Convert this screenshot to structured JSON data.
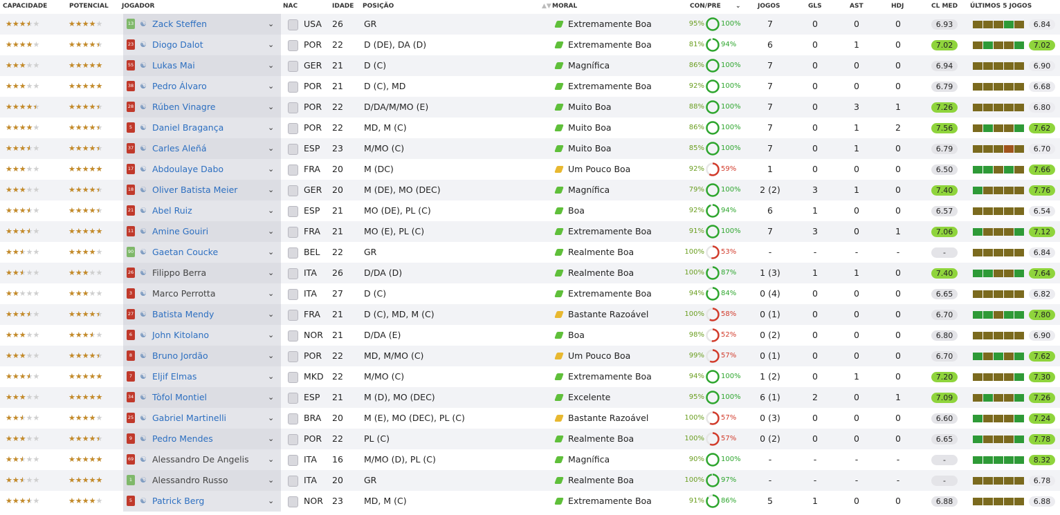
{
  "table": {
    "columns": [
      "CAPACIDADE",
      "POTENCIAL",
      "JOGADOR",
      "NAC",
      "IDADE",
      "POSIÇÃO",
      "MORAL",
      "CON/PRE",
      "JOGOS",
      "GLS",
      "AST",
      "HDJ",
      "CL MED",
      "ÚLTIMOS 5 JOGOS"
    ],
    "rows": [
      {
        "cap": 3.5,
        "pot": 4,
        "shirt": "13",
        "name": "Zack Steffen",
        "nat": "USA",
        "age": "26",
        "pos": "GR",
        "moral": "Extremamente Boa",
        "con": "95%",
        "pre": "100%",
        "jogos": "7",
        "gls": "0",
        "ast": "0",
        "hdj": "0",
        "cl": "6.93",
        "form": [
          "#7b6a1e",
          "#7b6a1e",
          "#7b6a1e",
          "#2e9a37",
          "#7b6a1e"
        ],
        "last": "6.84"
      },
      {
        "cap": 4,
        "pot": 4.5,
        "shirt": "23",
        "name": "Diogo Dalot",
        "nat": "POR",
        "age": "22",
        "pos": "D (DE), DA (D)",
        "moral": "Extremamente Boa",
        "con": "81%",
        "pre": "94%",
        "jogos": "6",
        "gls": "0",
        "ast": "1",
        "hdj": "0",
        "cl": "7.02",
        "form": [
          "#7b6a1e",
          "#2e9a37",
          "#7b6a1e",
          "#7b6a1e",
          "#2e9a37"
        ],
        "last": "7.02"
      },
      {
        "cap": 3,
        "pot": 5,
        "shirt": "55",
        "name": "Lukas Mai",
        "nat": "GER",
        "age": "21",
        "pos": "D (C)",
        "moral": "Magnífica",
        "con": "86%",
        "pre": "100%",
        "jogos": "7",
        "gls": "0",
        "ast": "0",
        "hdj": "0",
        "cl": "6.94",
        "form": [
          "#7b6a1e",
          "#7b6a1e",
          "#7b6a1e",
          "#7b6a1e",
          "#7b6a1e"
        ],
        "last": "6.90"
      },
      {
        "cap": 3,
        "pot": 5,
        "shirt": "38",
        "name": "Pedro Álvaro",
        "nat": "POR",
        "age": "21",
        "pos": "D (C), MD",
        "moral": "Extremamente Boa",
        "con": "92%",
        "pre": "100%",
        "jogos": "7",
        "gls": "0",
        "ast": "0",
        "hdj": "0",
        "cl": "6.79",
        "form": [
          "#7b6a1e",
          "#7b6a1e",
          "#7b6a1e",
          "#7b6a1e",
          "#7b6a1e"
        ],
        "last": "6.68"
      },
      {
        "cap": 4.5,
        "pot": 4.5,
        "shirt": "28",
        "name": "Rúben Vinagre",
        "nat": "POR",
        "age": "22",
        "pos": "D/DA/M/MO (E)",
        "moral": "Muito Boa",
        "con": "88%",
        "pre": "100%",
        "jogos": "7",
        "gls": "0",
        "ast": "3",
        "hdj": "1",
        "cl": "7.26",
        "form": [
          "#7b6a1e",
          "#7b6a1e",
          "#7b6a1e",
          "#7b6a1e",
          "#7b6a1e"
        ],
        "last": "6.80"
      },
      {
        "cap": 4,
        "pot": 4.5,
        "shirt": "5",
        "name": "Daniel Bragança",
        "nat": "POR",
        "age": "22",
        "pos": "MD, M (C)",
        "moral": "Muito Boa",
        "con": "86%",
        "pre": "100%",
        "jogos": "7",
        "gls": "0",
        "ast": "1",
        "hdj": "2",
        "cl": "7.56",
        "form": [
          "#7b6a1e",
          "#2e9a37",
          "#7b6a1e",
          "#7b6a1e",
          "#2e9a37"
        ],
        "last": "7.62"
      },
      {
        "cap": 3.5,
        "pot": 4.5,
        "shirt": "37",
        "name": "Carles Aleñá",
        "nat": "ESP",
        "age": "23",
        "pos": "M/MO (C)",
        "moral": "Muito Boa",
        "con": "85%",
        "pre": "100%",
        "jogos": "7",
        "gls": "0",
        "ast": "1",
        "hdj": "0",
        "cl": "6.79",
        "form": [
          "#7b6a1e",
          "#7b6a1e",
          "#7b6a1e",
          "#a0541c",
          "#7b6a1e"
        ],
        "last": "6.70"
      },
      {
        "cap": 3,
        "pot": 5,
        "shirt": "17",
        "name": "Abdoulaye Dabo",
        "nat": "FRA",
        "age": "20",
        "pos": "M (DC)",
        "moral": "Um Pouco Boa",
        "moral_color": "#e8b830",
        "con": "92%",
        "pre": "59%",
        "jogos": "1",
        "gls": "0",
        "ast": "0",
        "hdj": "0",
        "cl": "6.50",
        "form": [
          "#2e9a37",
          "#2e9a37",
          "#7b6a1e",
          "#2e9a37",
          "#7b6a1e"
        ],
        "last": "7.66"
      },
      {
        "cap": 3,
        "pot": 4.5,
        "shirt": "18",
        "name": "Oliver Batista Meier",
        "nat": "GER",
        "age": "20",
        "pos": "M (DE), MO (DEC)",
        "moral": "Magnífica",
        "con": "79%",
        "pre": "100%",
        "jogos": "2 (2)",
        "gls": "3",
        "ast": "1",
        "hdj": "0",
        "cl": "7.40",
        "form": [
          "#2e9a37",
          "#7b6a1e",
          "#7b6a1e",
          "#7b6a1e",
          "#7b6a1e"
        ],
        "last": "7.76"
      },
      {
        "cap": 3.5,
        "pot": 4.5,
        "shirt": "21",
        "name": "Abel Ruiz",
        "nat": "ESP",
        "age": "21",
        "pos": "MO (DE), PL (C)",
        "moral": "Boa",
        "con": "92%",
        "pre": "94%",
        "jogos": "6",
        "gls": "1",
        "ast": "0",
        "hdj": "0",
        "cl": "6.57",
        "form": [
          "#7b6a1e",
          "#7b6a1e",
          "#7b6a1e",
          "#7b6a1e",
          "#7b6a1e"
        ],
        "last": "6.54"
      },
      {
        "cap": 3.5,
        "pot": 5,
        "shirt": "11",
        "name": "Amine Gouiri",
        "nat": "FRA",
        "age": "21",
        "pos": "MO (E), PL (C)",
        "moral": "Extremamente Boa",
        "con": "91%",
        "pre": "100%",
        "jogos": "7",
        "gls": "3",
        "ast": "0",
        "hdj": "1",
        "cl": "7.06",
        "form": [
          "#2e9a37",
          "#7b6a1e",
          "#7b6a1e",
          "#7b6a1e",
          "#2e9a37"
        ],
        "last": "7.12"
      },
      {
        "cap": 2.5,
        "pot": 4,
        "shirt": "90",
        "name": "Gaetan Coucke",
        "nat": "BEL",
        "age": "22",
        "pos": "GR",
        "moral": "Realmente Boa",
        "con": "100%",
        "pre": "53%",
        "jogos": "-",
        "gls": "-",
        "ast": "-",
        "hdj": "-",
        "cl": "-",
        "form": [
          "#7b6a1e",
          "#7b6a1e",
          "#7b6a1e",
          "#7b6a1e",
          "#7b6a1e"
        ],
        "last": "6.84"
      },
      {
        "cap": 2.5,
        "pot": 3,
        "shirt": "26",
        "name": "Filippo Berra",
        "name_color": "#444",
        "nat": "ITA",
        "age": "26",
        "pos": "D/DA (D)",
        "moral": "Realmente Boa",
        "con": "100%",
        "pre": "87%",
        "jogos": "1 (3)",
        "gls": "1",
        "ast": "1",
        "hdj": "0",
        "cl": "7.40",
        "form": [
          "#2e9a37",
          "#2e9a37",
          "#7b6a1e",
          "#7b6a1e",
          "#2e9a37"
        ],
        "last": "7.64"
      },
      {
        "cap": 2,
        "pot": 3,
        "shirt": "3",
        "name": "Marco Perrotta",
        "name_color": "#444",
        "nat": "ITA",
        "age": "27",
        "pos": "D (C)",
        "moral": "Extremamente Boa",
        "con": "94%",
        "pre": "84%",
        "jogos": "0 (4)",
        "gls": "0",
        "ast": "0",
        "hdj": "0",
        "cl": "6.65",
        "form": [
          "#7b6a1e",
          "#7b6a1e",
          "#7b6a1e",
          "#7b6a1e",
          "#7b6a1e"
        ],
        "last": "6.82"
      },
      {
        "cap": 3.5,
        "pot": 4.5,
        "shirt": "27",
        "name": "Batista Mendy",
        "nat": "FRA",
        "age": "21",
        "pos": "D (C), MD, M (C)",
        "moral": "Bastante Razoável",
        "moral_color": "#e8b830",
        "con": "100%",
        "pre": "58%",
        "jogos": "0 (1)",
        "gls": "0",
        "ast": "0",
        "hdj": "0",
        "cl": "6.70",
        "form": [
          "#2e9a37",
          "#2e9a37",
          "#7b6a1e",
          "#2e9a37",
          "#2e9a37"
        ],
        "last": "7.80"
      },
      {
        "cap": 3,
        "pot": 3.5,
        "shirt": "6",
        "name": "John Kitolano",
        "nat": "NOR",
        "age": "21",
        "pos": "D/DA (E)",
        "moral": "Boa",
        "con": "98%",
        "pre": "52%",
        "jogos": "0 (2)",
        "gls": "0",
        "ast": "0",
        "hdj": "0",
        "cl": "6.80",
        "form": [
          "#7b6a1e",
          "#7b6a1e",
          "#7b6a1e",
          "#7b6a1e",
          "#7b6a1e"
        ],
        "last": "6.90"
      },
      {
        "cap": 3,
        "pot": 4.5,
        "shirt": "8",
        "name": "Bruno Jordão",
        "nat": "POR",
        "age": "22",
        "pos": "MD, M/MO (C)",
        "moral": "Um Pouco Boa",
        "moral_color": "#e8b830",
        "con": "99%",
        "pre": "57%",
        "jogos": "0 (1)",
        "gls": "0",
        "ast": "0",
        "hdj": "0",
        "cl": "6.70",
        "form": [
          "#2e9a37",
          "#7b6a1e",
          "#2e9a37",
          "#7b6a1e",
          "#2e9a37"
        ],
        "last": "7.62"
      },
      {
        "cap": 3.5,
        "pot": 5,
        "shirt": "7",
        "name": "Eljif Elmas",
        "nat": "MKD",
        "age": "22",
        "pos": "M/MO (C)",
        "moral": "Extremamente Boa",
        "con": "94%",
        "pre": "100%",
        "jogos": "1 (2)",
        "gls": "0",
        "ast": "1",
        "hdj": "0",
        "cl": "7.20",
        "form": [
          "#7b6a1e",
          "#7b6a1e",
          "#7b6a1e",
          "#7b6a1e",
          "#2e9a37"
        ],
        "last": "7.30"
      },
      {
        "cap": 3,
        "pot": 5,
        "shirt": "34",
        "name": "Tòfol Montiel",
        "nat": "ESP",
        "age": "21",
        "pos": "M (D), MO (DEC)",
        "moral": "Excelente",
        "con": "95%",
        "pre": "100%",
        "jogos": "6 (1)",
        "gls": "2",
        "ast": "0",
        "hdj": "1",
        "cl": "7.09",
        "form": [
          "#7b6a1e",
          "#2e9a37",
          "#7b6a1e",
          "#7b6a1e",
          "#2e9a37"
        ],
        "last": "7.26"
      },
      {
        "cap": 2.5,
        "pot": 4,
        "shirt": "25",
        "name": "Gabriel Martinelli",
        "nat": "BRA",
        "age": "20",
        "pos": "M (E), MO (DEC), PL (C)",
        "moral": "Bastante Razoável",
        "moral_color": "#e8b830",
        "con": "100%",
        "pre": "57%",
        "jogos": "0 (3)",
        "gls": "0",
        "ast": "0",
        "hdj": "0",
        "cl": "6.60",
        "form": [
          "#2e9a37",
          "#7b6a1e",
          "#7b6a1e",
          "#7b6a1e",
          "#2e9a37"
        ],
        "last": "7.24"
      },
      {
        "cap": 3,
        "pot": 4.5,
        "shirt": "9",
        "name": "Pedro Mendes",
        "nat": "POR",
        "age": "22",
        "pos": "PL (C)",
        "moral": "Realmente Boa",
        "con": "100%",
        "pre": "57%",
        "jogos": "0 (2)",
        "gls": "0",
        "ast": "0",
        "hdj": "0",
        "cl": "6.65",
        "form": [
          "#2e9a37",
          "#7b6a1e",
          "#7b6a1e",
          "#7b6a1e",
          "#2e9a37"
        ],
        "last": "7.78"
      },
      {
        "cap": 2.5,
        "pot": 5,
        "shirt": "69",
        "name": "Alessandro De Angelis",
        "name_color": "#444",
        "nat": "ITA",
        "age": "16",
        "pos": "M/MO (D), PL (C)",
        "moral": "Magnífica",
        "con": "90%",
        "pre": "100%",
        "jogos": "-",
        "gls": "-",
        "ast": "-",
        "hdj": "-",
        "cl": "-",
        "form": [
          "#2e9a37",
          "#2e9a37",
          "#2e9a37",
          "#2e9a37",
          "#2e9a37"
        ],
        "last": "8.32"
      },
      {
        "cap": 2.5,
        "pot": 5,
        "shirt": "1",
        "name": "Alessandro Russo",
        "name_color": "#444",
        "nat": "ITA",
        "age": "20",
        "pos": "GR",
        "moral": "Realmente Boa",
        "con": "100%",
        "pre": "97%",
        "jogos": "-",
        "gls": "-",
        "ast": "-",
        "hdj": "-",
        "cl": "-",
        "form": [
          "#7b6a1e",
          "#7b6a1e",
          "#7b6a1e",
          "#7b6a1e",
          "#7b6a1e"
        ],
        "last": "6.78"
      },
      {
        "cap": 3.5,
        "pot": 4,
        "shirt": "5",
        "name": "Patrick Berg",
        "nat": "NOR",
        "age": "23",
        "pos": "MD, M (C)",
        "moral": "Extremamente Boa",
        "con": "91%",
        "pre": "86%",
        "jogos": "5",
        "gls": "1",
        "ast": "0",
        "hdj": "0",
        "cl": "6.88",
        "form": [
          "#7b6a1e",
          "#7b6a1e",
          "#7b6a1e",
          "#7b6a1e",
          "#7b6a1e"
        ],
        "last": "6.88"
      }
    ]
  }
}
